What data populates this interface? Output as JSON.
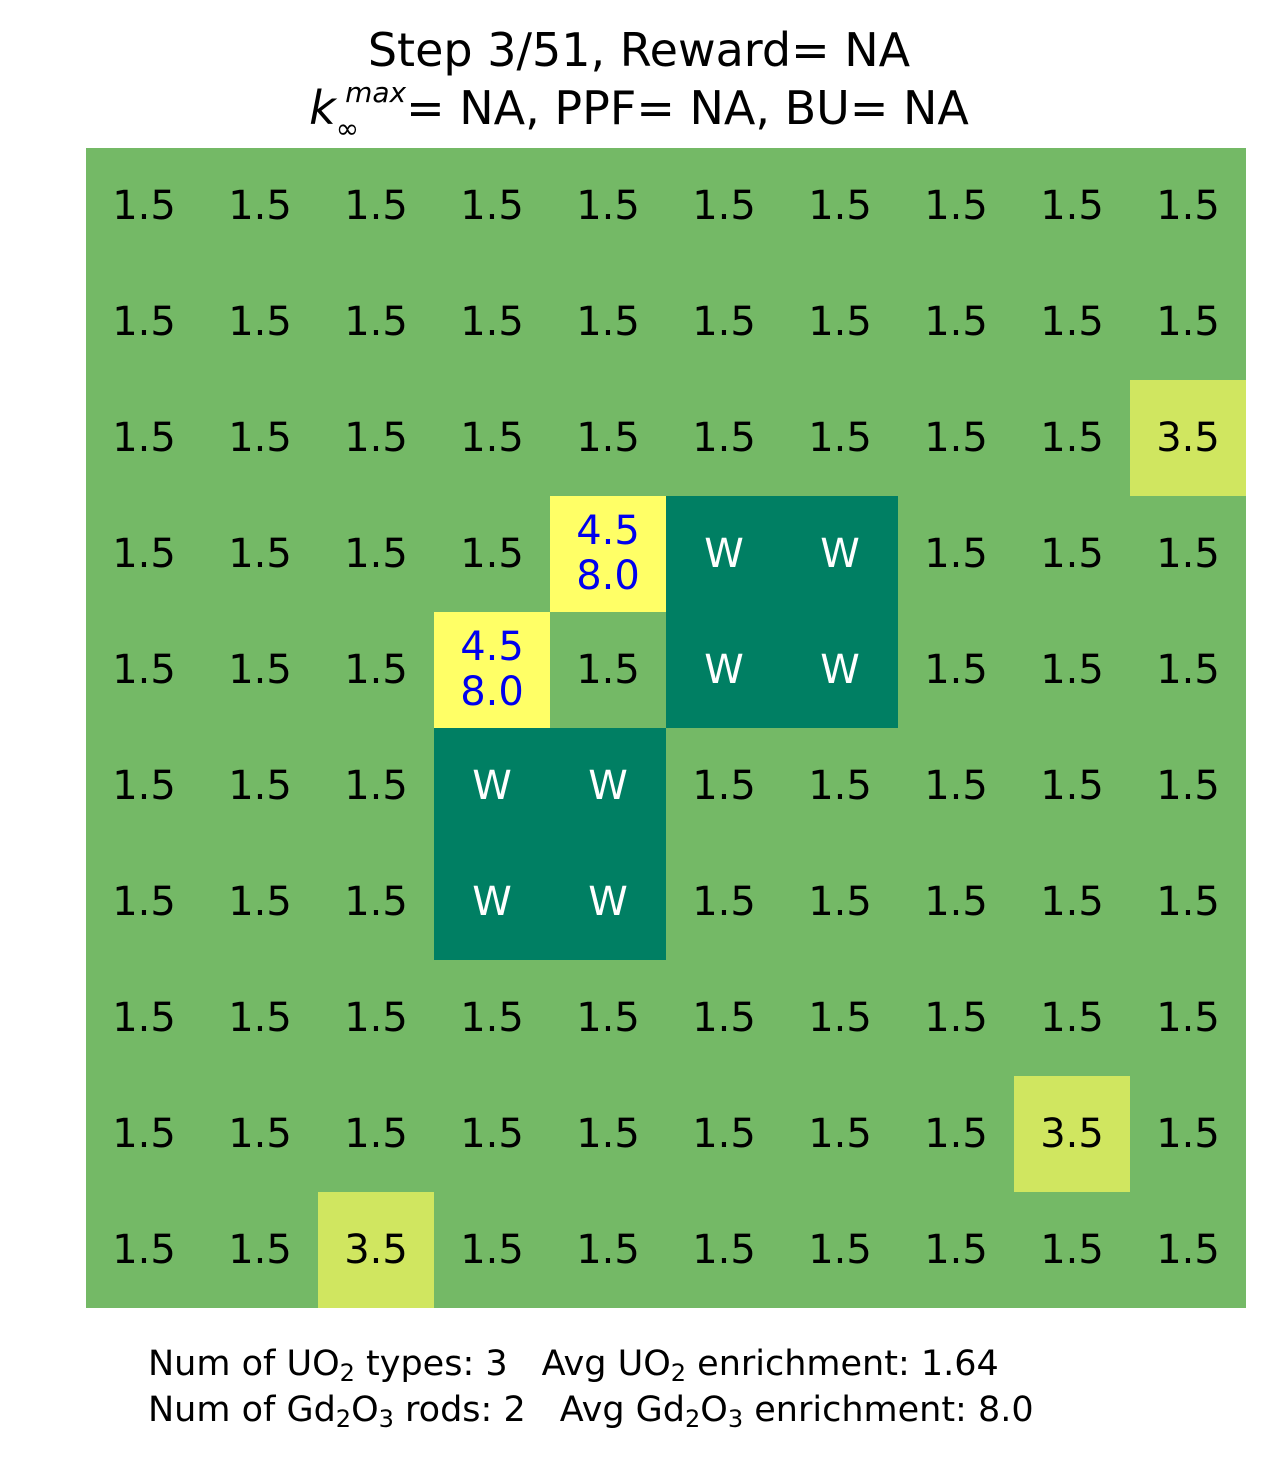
{
  "title": {
    "step_text": "Step 3/51, Reward= NA",
    "k_symbol": "k",
    "k_sub": "∞",
    "k_sup": "max",
    "k_rest": "= NA, PPF= NA, BU= NA"
  },
  "colors": {
    "low_enrichment": "#74b966",
    "mid_enrichment": "#d0e660",
    "gd_rod": "#ffff66",
    "water": "#007f63",
    "gd_text": "#0000ee"
  },
  "grid": [
    [
      "1.5",
      "1.5",
      "1.5",
      "1.5",
      "1.5",
      "1.5",
      "1.5",
      "1.5",
      "1.5",
      "1.5"
    ],
    [
      "1.5",
      "1.5",
      "1.5",
      "1.5",
      "1.5",
      "1.5",
      "1.5",
      "1.5",
      "1.5",
      "1.5"
    ],
    [
      "1.5",
      "1.5",
      "1.5",
      "1.5",
      "1.5",
      "1.5",
      "1.5",
      "1.5",
      "1.5",
      "3.5"
    ],
    [
      "1.5",
      "1.5",
      "1.5",
      "1.5",
      "4.5|8.0",
      "W",
      "W",
      "1.5",
      "1.5",
      "1.5"
    ],
    [
      "1.5",
      "1.5",
      "1.5",
      "4.5|8.0",
      "1.5",
      "W",
      "W",
      "1.5",
      "1.5",
      "1.5"
    ],
    [
      "1.5",
      "1.5",
      "1.5",
      "W",
      "W",
      "1.5",
      "1.5",
      "1.5",
      "1.5",
      "1.5"
    ],
    [
      "1.5",
      "1.5",
      "1.5",
      "W",
      "W",
      "1.5",
      "1.5",
      "1.5",
      "1.5",
      "1.5"
    ],
    [
      "1.5",
      "1.5",
      "1.5",
      "1.5",
      "1.5",
      "1.5",
      "1.5",
      "1.5",
      "1.5",
      "1.5"
    ],
    [
      "1.5",
      "1.5",
      "1.5",
      "1.5",
      "1.5",
      "1.5",
      "1.5",
      "1.5",
      "3.5",
      "1.5"
    ],
    [
      "1.5",
      "1.5",
      "3.5",
      "1.5",
      "1.5",
      "1.5",
      "1.5",
      "1.5",
      "1.5",
      "1.5"
    ]
  ],
  "footer": {
    "uo2_types_label": "Num of UO",
    "uo2_types_rest": " types: 3",
    "avg_uo2_label": "Avg UO",
    "avg_uo2_rest": " enrichment: 1.64",
    "gd_rods_label": "Num of Gd",
    "gd_rods_mid": "O",
    "gd_rods_rest": " rods: 2",
    "avg_gd_label": "Avg Gd",
    "avg_gd_mid": "O",
    "avg_gd_rest": " enrichment: 8.0",
    "sub_two": "2",
    "sub_three": "3"
  }
}
